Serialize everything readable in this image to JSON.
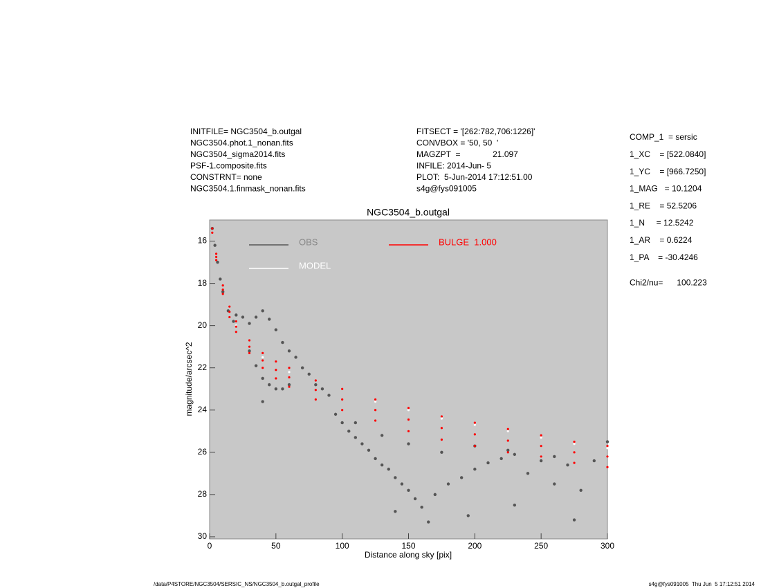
{
  "chart_data": {
    "type": "scatter",
    "title": "NGC3504_b.outgal",
    "x_label": "Distance along sky [pix]",
    "y_label": "magnitude/arcsec^2",
    "info_left": [
      "INITFILE= NGC3504_b.outgal",
      "NGC3504.phot.1_nonan.fits",
      "NGC3504_sigma2014.fits",
      "PSF-1.composite.fits",
      "CONSTRNT= none",
      "NGC3504.1.finmask_nonan.fits"
    ],
    "info_mid": [
      "FITSECT = '[262:782,706:1226]'",
      "CONVBOX = '50, 50  '",
      "MAGZPT  =              21.097",
      "INFILE: 2014-Jun- 5",
      "PLOT:  5-Jun-2014 17:12:51.00",
      "s4g@fys091005"
    ],
    "params": [
      "COMP_1  = sersic",
      "1_XC    = [522.0840]",
      "1_YC    = [966.7250]",
      "1_MAG   = 10.1204",
      "1_RE    = 52.5206",
      "1_N     = 12.5242",
      "1_AR    = 0.6224",
      "1_PA    = -30.4246",
      "Chi2/nu=      100.223"
    ],
    "footer_left": "/data/P4STORE/NGC3504/SERSIC_NS/NGC3504_b.outgal_profile",
    "footer_right": "s4g@fys091005  Thu Jun  5 17:12:51 2014",
    "xlim": [
      0,
      300
    ],
    "xticks": [
      0,
      50,
      100,
      150,
      200,
      250,
      300
    ],
    "ylim": [
      15,
      30.1
    ],
    "y_reversed": true,
    "yticks": [
      16,
      18,
      20,
      22,
      24,
      26,
      28,
      30
    ],
    "background": "#c8c8c8",
    "series": [
      {
        "name": "OBS",
        "color": "#555555",
        "x": [
          2,
          4,
          6,
          8,
          10,
          14,
          18,
          20,
          25,
          30,
          35,
          40,
          45,
          50,
          55,
          60,
          65,
          70,
          75,
          80,
          85,
          90,
          30,
          35,
          40,
          45,
          50,
          55,
          60,
          40,
          95,
          100,
          105,
          110,
          115,
          120,
          125,
          130,
          135,
          140,
          145,
          150,
          155,
          160,
          170,
          180,
          190,
          200,
          210,
          220,
          230,
          240,
          250,
          260,
          270,
          280,
          290,
          300,
          110,
          130,
          150,
          175,
          200,
          225,
          260,
          165,
          195,
          230,
          275,
          140
        ],
        "values": [
          15.4,
          16.2,
          17.0,
          17.8,
          18.4,
          19.3,
          19.8,
          19.5,
          19.6,
          19.9,
          19.6,
          19.3,
          19.7,
          20.2,
          20.8,
          21.2,
          21.5,
          22.0,
          22.3,
          22.8,
          23.0,
          23.3,
          21.2,
          21.9,
          22.5,
          22.8,
          23.0,
          23.0,
          22.8,
          23.6,
          24.2,
          24.6,
          25.0,
          25.3,
          25.6,
          25.9,
          26.3,
          26.6,
          26.8,
          27.2,
          27.5,
          27.8,
          28.2,
          28.6,
          28.0,
          27.5,
          27.2,
          26.8,
          26.5,
          26.3,
          26.1,
          27.0,
          26.4,
          27.5,
          26.6,
          27.8,
          26.4,
          25.5,
          24.6,
          25.2,
          25.6,
          26.0,
          25.7,
          25.9,
          26.2,
          29.3,
          29.0,
          28.5,
          29.2,
          28.8
        ]
      },
      {
        "name": "MODEL",
        "color": "#ffffff",
        "x": [
          20,
          40,
          60,
          125,
          150,
          175,
          200,
          225,
          250,
          275,
          300
        ],
        "values": [
          20.0,
          21.5,
          22.2,
          23.6,
          24.0,
          24.4,
          24.7,
          25.0,
          25.3,
          25.6,
          25.8
        ]
      },
      {
        "name": "BULGE  1.000",
        "color": "#ff0000",
        "x": [
          2,
          5,
          10,
          15,
          20,
          30,
          40,
          50,
          60,
          80,
          100,
          125,
          150,
          175,
          200,
          225,
          250,
          275,
          300,
          2,
          5,
          10,
          15,
          20,
          30,
          40,
          50,
          60,
          80,
          100,
          125,
          150,
          175,
          200,
          225,
          250,
          275,
          300,
          5,
          10,
          15,
          20,
          30,
          40,
          50,
          60,
          80,
          100,
          125,
          150,
          175,
          200,
          225,
          250,
          275,
          300
        ],
        "values": [
          15.4,
          16.6,
          18.1,
          19.1,
          19.8,
          20.7,
          21.3,
          21.7,
          22.0,
          22.6,
          23.0,
          23.5,
          23.9,
          24.3,
          24.6,
          24.9,
          25.2,
          25.5,
          25.7,
          15.6,
          16.9,
          18.5,
          19.6,
          20.3,
          21.3,
          22.0,
          22.5,
          22.9,
          23.5,
          24.0,
          24.5,
          25.0,
          25.4,
          25.7,
          26.0,
          26.2,
          26.5,
          26.7,
          16.75,
          18.3,
          19.35,
          20.05,
          21.0,
          21.65,
          22.1,
          22.45,
          23.05,
          23.5,
          24.0,
          24.45,
          24.85,
          25.15,
          25.45,
          25.7,
          26.0,
          26.2
        ]
      }
    ]
  }
}
